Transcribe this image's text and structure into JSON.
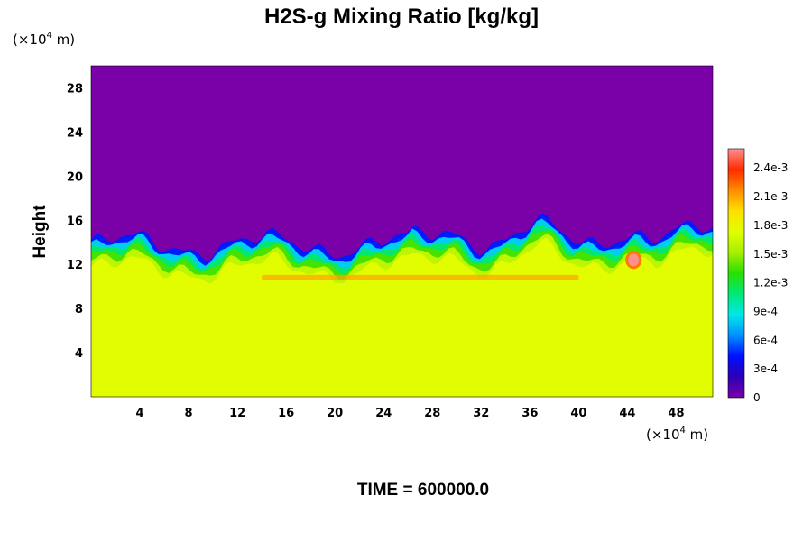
{
  "chart_data": {
    "type": "heatmap",
    "title": "H2S-g Mixing Ratio [kg/kg]",
    "ylabel": "Height",
    "xlabel": "",
    "x_unit": {
      "prefix": "(×10",
      "exp": "4",
      "suffix": " m)"
    },
    "y_unit": {
      "prefix": "(×10",
      "exp": "4",
      "suffix": " m)"
    },
    "x_ticks": [
      "4",
      "8",
      "12",
      "16",
      "20",
      "24",
      "28",
      "32",
      "36",
      "40",
      "44",
      "48"
    ],
    "x_tick_values": [
      4,
      8,
      12,
      16,
      20,
      24,
      28,
      32,
      36,
      40,
      44,
      48
    ],
    "y_ticks": [
      "4",
      "8",
      "12",
      "16",
      "20",
      "24",
      "28"
    ],
    "y_tick_values": [
      4,
      8,
      12,
      16,
      20,
      24,
      28
    ],
    "xlim": [
      0,
      51
    ],
    "ylim": [
      0,
      30
    ],
    "time_label": "TIME = 600000.0",
    "colorbar": {
      "ticks": [
        "0",
        "3e-4",
        "6e-4",
        "9e-4",
        "1.2e-3",
        "1.5e-3",
        "1.8e-3",
        "2.1e-3",
        "2.4e-3"
      ],
      "tick_values": [
        0,
        0.0003,
        0.0006,
        0.0009,
        0.0012,
        0.0015,
        0.0018,
        0.0021,
        0.0024
      ],
      "range": [
        0,
        0.0026
      ],
      "colors": [
        "#7a00a8",
        "#2a00b8",
        "#0010ff",
        "#0090ff",
        "#00e8e8",
        "#00e878",
        "#28e000",
        "#a8ee00",
        "#e0ff00",
        "#ffe000",
        "#ff8c00",
        "#ff2a00",
        "#ff9090"
      ]
    },
    "field": {
      "description_values": "approximate mixing ratio by height band (data units)",
      "upper_layer": {
        "y_from": 14.5,
        "y_to": 30,
        "value": 0.0
      },
      "lower_layer": {
        "y_from": 0,
        "y_to": 10.5,
        "value": 0.00175
      },
      "transition_front_height": 12.5,
      "warm_band": {
        "y": 10.8,
        "x_from": 14,
        "x_to": 40,
        "value": 0.0021
      },
      "peak": {
        "x": 44.5,
        "y": 12.4,
        "value": 0.0026
      }
    }
  }
}
